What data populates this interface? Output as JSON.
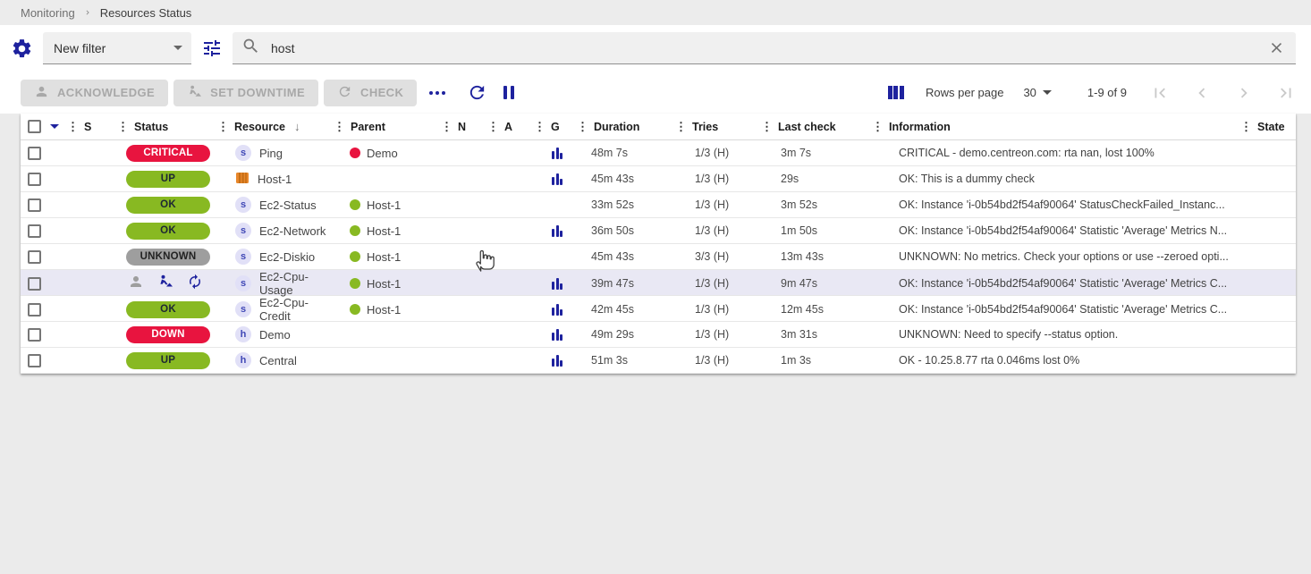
{
  "breadcrumb": {
    "items": [
      "Monitoring",
      "Resources Status"
    ]
  },
  "filter_bar": {
    "preset_filter": "New filter",
    "search_value": "host",
    "icons": {
      "settings": "gear",
      "advanced_filter": "tune-sliders",
      "search": "magnifier",
      "clear": "x-cross"
    }
  },
  "toolbar": {
    "acknowledge_label": "ACKNOWLEDGE",
    "set_downtime_label": "SET DOWNTIME",
    "check_label": "CHECK",
    "icons": {
      "more": "ellipsis-dots",
      "refresh": "circular-arrow",
      "pause": "pause-bars",
      "columns": "column-bars"
    }
  },
  "pagination": {
    "rows_per_page_label": "Rows per page",
    "rows_per_page_value": "30",
    "range_label": "1-9 of 9",
    "icons": [
      "first-page",
      "prev-page",
      "next-page",
      "last-page"
    ]
  },
  "table": {
    "columns": [
      {
        "label": "S"
      },
      {
        "label": "Status"
      },
      {
        "label": "Resource",
        "sorted": "desc"
      },
      {
        "label": "Parent"
      },
      {
        "label": "N"
      },
      {
        "label": "A"
      },
      {
        "label": "G"
      },
      {
        "label": "Duration"
      },
      {
        "label": "Tries"
      },
      {
        "label": "Last check"
      },
      {
        "label": "Information"
      },
      {
        "label": "State"
      }
    ],
    "rows": [
      {
        "severity": "critical",
        "status": "CRITICAL",
        "resource_type": "service",
        "resource": "Ping",
        "parent": "Demo",
        "parent_severity": "critical",
        "graph": true,
        "duration": "48m 7s",
        "tries": "1/3 (H)",
        "last_check": "3m 7s",
        "information": "CRITICAL - demo.centreon.com: rta nan, lost 100%",
        "highlighted": false,
        "state_icons": []
      },
      {
        "severity": "ok",
        "status": "UP",
        "resource_type": "aws",
        "resource": "Host-1",
        "parent": "",
        "parent_severity": "",
        "graph": true,
        "duration": "45m 43s",
        "tries": "1/3 (H)",
        "last_check": "29s",
        "information": "OK: This is a dummy check",
        "highlighted": false,
        "state_icons": []
      },
      {
        "severity": "ok",
        "status": "OK",
        "resource_type": "service",
        "resource": "Ec2-Status",
        "parent": "Host-1",
        "parent_severity": "ok",
        "graph": false,
        "duration": "33m 52s",
        "tries": "1/3 (H)",
        "last_check": "3m 52s",
        "information": "OK: Instance 'i-0b54bd2f54af90064' StatusCheckFailed_Instanc...",
        "highlighted": false,
        "state_icons": []
      },
      {
        "severity": "ok",
        "status": "OK",
        "resource_type": "service",
        "resource": "Ec2-Network",
        "parent": "Host-1",
        "parent_severity": "ok",
        "graph": true,
        "duration": "36m 50s",
        "tries": "1/3 (H)",
        "last_check": "1m 50s",
        "information": "OK: Instance 'i-0b54bd2f54af90064' Statistic 'Average' Metrics N...",
        "highlighted": false,
        "state_icons": []
      },
      {
        "severity": "unknown",
        "status": "UNKNOWN",
        "resource_type": "service",
        "resource": "Ec2-Diskio",
        "parent": "Host-1",
        "parent_severity": "ok",
        "graph": false,
        "duration": "45m 43s",
        "tries": "3/3 (H)",
        "last_check": "13m 43s",
        "information": "UNKNOWN: No metrics. Check your options or use --zeroed opti...",
        "highlighted": false,
        "state_icons": []
      },
      {
        "severity": "",
        "status": "",
        "resource_type": "service",
        "resource": "Ec2-Cpu-Usage",
        "parent": "Host-1",
        "parent_severity": "ok",
        "graph": true,
        "duration": "39m 47s",
        "tries": "1/3 (H)",
        "last_check": "9m 47s",
        "information": "OK: Instance 'i-0b54bd2f54af90064' Statistic 'Average' Metrics C...",
        "highlighted": true,
        "state_icons": [
          "acknowledged-person",
          "downtime-worker",
          "check-in-progress-sync"
        ]
      },
      {
        "severity": "ok",
        "status": "OK",
        "resource_type": "service",
        "resource": "Ec2-Cpu-Credit",
        "parent": "Host-1",
        "parent_severity": "ok",
        "graph": true,
        "duration": "42m 45s",
        "tries": "1/3 (H)",
        "last_check": "12m 45s",
        "information": "OK: Instance 'i-0b54bd2f54af90064' Statistic 'Average' Metrics C...",
        "highlighted": false,
        "state_icons": []
      },
      {
        "severity": "critical",
        "status": "DOWN",
        "resource_type": "host",
        "resource": "Demo",
        "parent": "",
        "parent_severity": "",
        "graph": true,
        "duration": "49m 29s",
        "tries": "1/3 (H)",
        "last_check": "3m 31s",
        "information": "UNKNOWN: Need to specify --status option.",
        "highlighted": false,
        "state_icons": []
      },
      {
        "severity": "ok",
        "status": "UP",
        "resource_type": "host",
        "resource": "Central",
        "parent": "",
        "parent_severity": "",
        "graph": true,
        "duration": "51m 3s",
        "tries": "1/3 (H)",
        "last_check": "1m 3s",
        "information": "OK - 10.25.8.77 rta 0.046ms lost 0%",
        "highlighted": false,
        "state_icons": []
      }
    ]
  },
  "colors": {
    "primary_icon": "#1e229e",
    "critical": "#e8143f",
    "ok": "#88b922",
    "unknown": "#9e9e9e",
    "row_highlight": "#e9e8f4",
    "disabled_button_bg": "#e0e0e0",
    "disabled_button_text": "#a8a8a8"
  }
}
